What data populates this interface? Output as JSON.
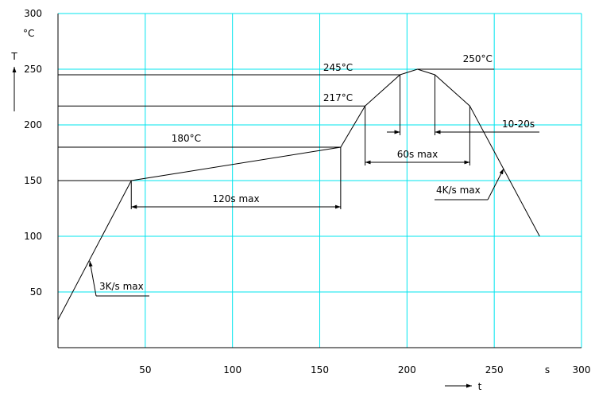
{
  "chart_data": {
    "type": "line",
    "grid": true,
    "colors": {
      "grid": "#00e5ee",
      "line": "#000000"
    },
    "xlim": [
      0,
      300
    ],
    "ylim": [
      0,
      300
    ],
    "x_ticks": [
      50,
      100,
      150,
      200,
      250,
      300
    ],
    "y_ticks": [
      50,
      100,
      150,
      200,
      250,
      300
    ],
    "x_unit": "s",
    "xlabel": "t",
    "ylabel": "T",
    "y_unit": "°C",
    "series": [
      {
        "x": [
          0,
          42,
          162,
          176,
          196,
          206,
          216,
          236,
          276
        ],
        "y": [
          25,
          150,
          180,
          217,
          245,
          250,
          245,
          217,
          100
        ]
      }
    ],
    "reference_lines": [
      {
        "label": "180°C",
        "y": 180,
        "x_end": 162
      },
      {
        "label": "217°C",
        "y": 217,
        "x_end": 176
      },
      {
        "label": "245°C",
        "y": 245,
        "x_end": 196
      },
      {
        "label": "250°C",
        "y": 250,
        "x_start": 206,
        "x_end": 250
      },
      {
        "label": "",
        "y": 150,
        "x_end": 42
      }
    ],
    "annotations": [
      {
        "text": "3K/s max"
      },
      {
        "text": "120s max"
      },
      {
        "text": "60s max"
      },
      {
        "text": "10-20s"
      },
      {
        "text": "4K/s max"
      }
    ]
  }
}
